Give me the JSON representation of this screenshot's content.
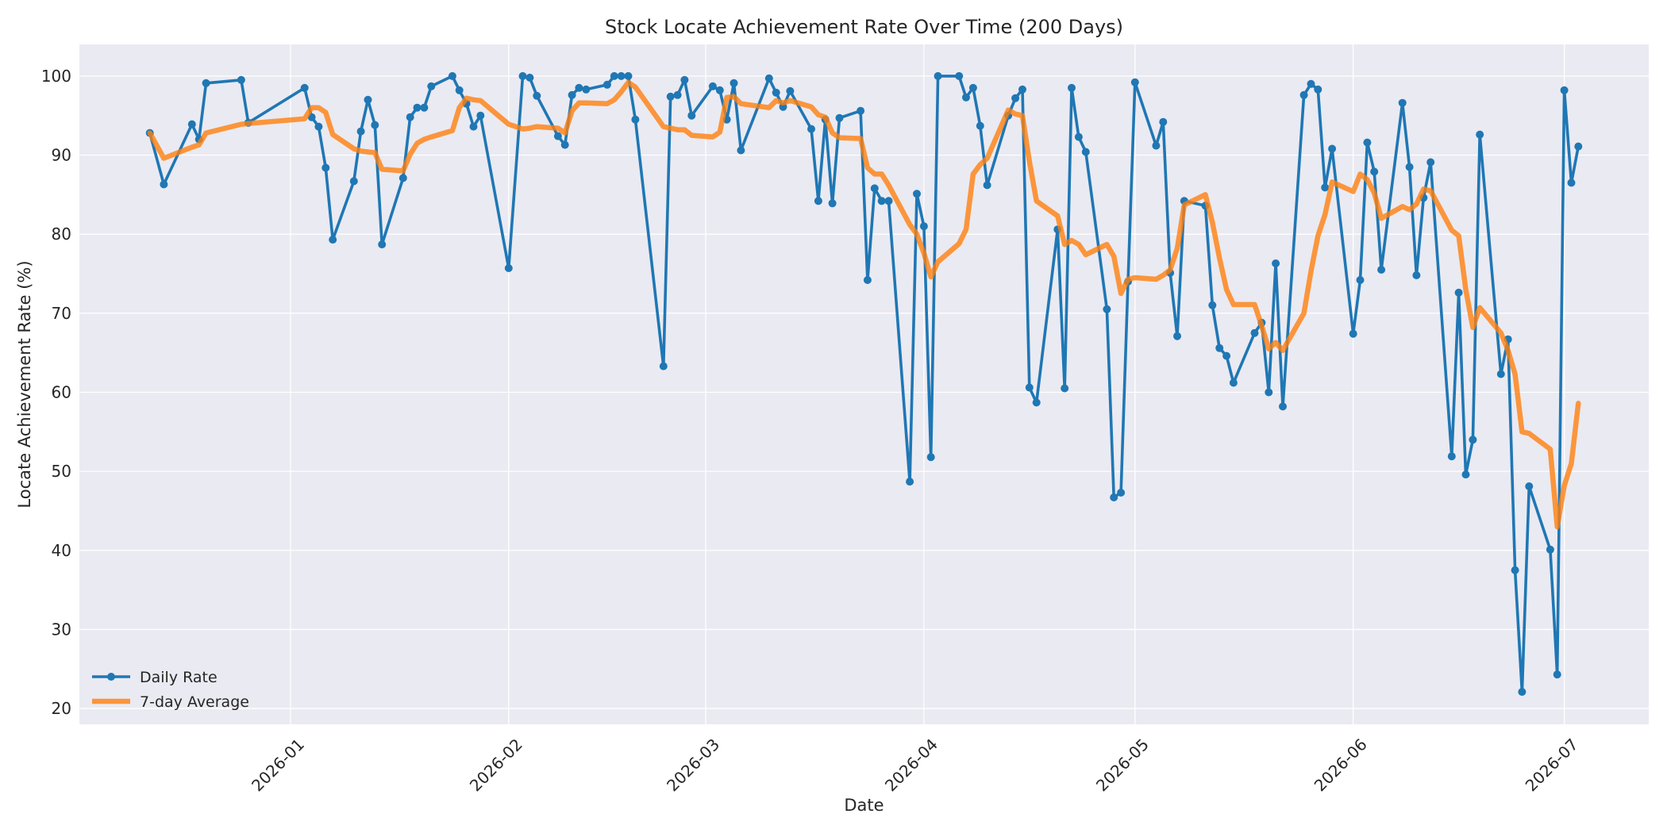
{
  "chart_data": {
    "type": "line",
    "title": "Stock Locate Achievement Rate Over Time (200 Days)",
    "xlabel": "Date",
    "ylabel": "Locate Achievement Rate (%)",
    "xlim": [
      "2025-12-02",
      "2026-07-13"
    ],
    "ylim": [
      18,
      104
    ],
    "yticks": [
      20,
      30,
      40,
      50,
      60,
      70,
      80,
      90,
      100
    ],
    "xticks": [
      "2026-01-01",
      "2026-02-01",
      "2026-03-01",
      "2026-04-01",
      "2026-05-01",
      "2026-06-01",
      "2026-07-01"
    ],
    "xtick_labels": [
      "2026-01",
      "2026-02",
      "2026-03",
      "2026-04",
      "2026-05",
      "2026-06",
      "2026-07"
    ],
    "grid": true,
    "legend_position": "lower-left",
    "colors": {
      "daily": "#1f77b4",
      "avg": "#ff7f0e",
      "background": "#eaeaf2",
      "grid": "#ffffff"
    },
    "series": [
      {
        "name": "Daily Rate",
        "marker": "circle",
        "points": [
          [
            "2025-12-12",
            92.8
          ],
          [
            "2025-12-14",
            86.3
          ],
          [
            "2025-12-18",
            93.9
          ],
          [
            "2025-12-19",
            92.0
          ],
          [
            "2025-12-20",
            99.1
          ],
          [
            "2025-12-25",
            99.5
          ],
          [
            "2025-12-26",
            94.1
          ],
          [
            "2026-01-03",
            98.5
          ],
          [
            "2026-01-04",
            94.8
          ],
          [
            "2026-01-05",
            93.6
          ],
          [
            "2026-01-06",
            88.4
          ],
          [
            "2026-01-07",
            79.3
          ],
          [
            "2026-01-10",
            86.7
          ],
          [
            "2026-01-11",
            93.0
          ],
          [
            "2026-01-12",
            97.0
          ],
          [
            "2026-01-13",
            93.8
          ],
          [
            "2026-01-14",
            78.7
          ],
          [
            "2026-01-17",
            87.1
          ],
          [
            "2026-01-18",
            94.8
          ],
          [
            "2026-01-19",
            96.0
          ],
          [
            "2026-01-20",
            96.0
          ],
          [
            "2026-01-21",
            98.7
          ],
          [
            "2026-01-24",
            100.0
          ],
          [
            "2026-01-25",
            98.2
          ],
          [
            "2026-01-26",
            96.5
          ],
          [
            "2026-01-27",
            93.6
          ],
          [
            "2026-01-28",
            95.0
          ],
          [
            "2026-02-01",
            75.7
          ],
          [
            "2026-02-03",
            100.0
          ],
          [
            "2026-02-04",
            99.8
          ],
          [
            "2026-02-05",
            97.5
          ],
          [
            "2026-02-08",
            92.4
          ],
          [
            "2026-02-09",
            91.3
          ],
          [
            "2026-02-10",
            97.6
          ],
          [
            "2026-02-11",
            98.5
          ],
          [
            "2026-02-12",
            98.3
          ],
          [
            "2026-02-15",
            98.9
          ],
          [
            "2026-02-16",
            100.0
          ],
          [
            "2026-02-17",
            100.0
          ],
          [
            "2026-02-18",
            100.0
          ],
          [
            "2026-02-19",
            94.5
          ],
          [
            "2026-02-23",
            63.3
          ],
          [
            "2026-02-24",
            97.4
          ],
          [
            "2026-02-25",
            97.6
          ],
          [
            "2026-02-26",
            99.5
          ],
          [
            "2026-02-27",
            95.0
          ],
          [
            "2026-03-02",
            98.7
          ],
          [
            "2026-03-03",
            98.2
          ],
          [
            "2026-03-04",
            94.5
          ],
          [
            "2026-03-05",
            99.1
          ],
          [
            "2026-03-06",
            90.6
          ],
          [
            "2026-03-10",
            99.7
          ],
          [
            "2026-03-11",
            97.9
          ],
          [
            "2026-03-12",
            96.1
          ],
          [
            "2026-03-13",
            98.1
          ],
          [
            "2026-03-16",
            93.3
          ],
          [
            "2026-03-17",
            84.2
          ],
          [
            "2026-03-18",
            94.5
          ],
          [
            "2026-03-19",
            83.9
          ],
          [
            "2026-03-20",
            94.7
          ],
          [
            "2026-03-23",
            95.6
          ],
          [
            "2026-03-24",
            74.2
          ],
          [
            "2026-03-25",
            85.8
          ],
          [
            "2026-03-26",
            84.2
          ],
          [
            "2026-03-27",
            84.2
          ],
          [
            "2026-03-30",
            48.7
          ],
          [
            "2026-03-31",
            85.1
          ],
          [
            "2026-04-01",
            81.0
          ],
          [
            "2026-04-02",
            51.8
          ],
          [
            "2026-04-03",
            100.0
          ],
          [
            "2026-04-06",
            100.0
          ],
          [
            "2026-04-07",
            97.3
          ],
          [
            "2026-04-08",
            98.5
          ],
          [
            "2026-04-09",
            93.7
          ],
          [
            "2026-04-10",
            86.2
          ],
          [
            "2026-04-13",
            95.0
          ],
          [
            "2026-04-14",
            97.2
          ],
          [
            "2026-04-15",
            98.3
          ],
          [
            "2026-04-16",
            60.6
          ],
          [
            "2026-04-17",
            58.7
          ],
          [
            "2026-04-20",
            80.6
          ],
          [
            "2026-04-21",
            60.5
          ],
          [
            "2026-04-22",
            98.5
          ],
          [
            "2026-04-23",
            92.3
          ],
          [
            "2026-04-24",
            90.4
          ],
          [
            "2026-04-27",
            70.5
          ],
          [
            "2026-04-28",
            46.7
          ],
          [
            "2026-04-29",
            47.3
          ],
          [
            "2026-04-30",
            74.0
          ],
          [
            "2026-05-01",
            99.2
          ],
          [
            "2026-05-04",
            91.2
          ],
          [
            "2026-05-05",
            94.2
          ],
          [
            "2026-05-06",
            75.1
          ],
          [
            "2026-05-07",
            67.1
          ],
          [
            "2026-05-08",
            84.2
          ],
          [
            "2026-05-11",
            83.6
          ],
          [
            "2026-05-12",
            71.0
          ],
          [
            "2026-05-13",
            65.6
          ],
          [
            "2026-05-14",
            64.6
          ],
          [
            "2026-05-15",
            61.2
          ],
          [
            "2026-05-18",
            67.5
          ],
          [
            "2026-05-19",
            68.8
          ],
          [
            "2026-05-20",
            60.0
          ],
          [
            "2026-05-21",
            76.3
          ],
          [
            "2026-05-22",
            58.2
          ],
          [
            "2026-05-25",
            97.6
          ],
          [
            "2026-05-26",
            99.0
          ],
          [
            "2026-05-27",
            98.3
          ],
          [
            "2026-05-28",
            85.9
          ],
          [
            "2026-05-29",
            90.8
          ],
          [
            "2026-06-01",
            67.4
          ],
          [
            "2026-06-02",
            74.2
          ],
          [
            "2026-06-03",
            91.6
          ],
          [
            "2026-06-04",
            87.9
          ],
          [
            "2026-06-05",
            75.5
          ],
          [
            "2026-06-08",
            96.6
          ],
          [
            "2026-06-09",
            88.5
          ],
          [
            "2026-06-10",
            74.8
          ],
          [
            "2026-06-11",
            84.6
          ],
          [
            "2026-06-12",
            89.1
          ],
          [
            "2026-06-15",
            51.9
          ],
          [
            "2026-06-16",
            72.6
          ],
          [
            "2026-06-17",
            49.6
          ],
          [
            "2026-06-18",
            54.0
          ],
          [
            "2026-06-19",
            92.6
          ],
          [
            "2026-06-22",
            62.3
          ],
          [
            "2026-06-23",
            66.7
          ],
          [
            "2026-06-24",
            37.5
          ],
          [
            "2026-06-25",
            22.1
          ],
          [
            "2026-06-26",
            48.1
          ],
          [
            "2026-06-29",
            40.1
          ],
          [
            "2026-06-30",
            24.3
          ],
          [
            "2026-07-01",
            98.2
          ],
          [
            "2026-07-02",
            86.5
          ],
          [
            "2026-07-03",
            91.1
          ]
        ]
      },
      {
        "name": "7-day Average",
        "points": [
          [
            "2025-12-12",
            92.8
          ],
          [
            "2025-12-14",
            89.6
          ],
          [
            "2025-12-18",
            91.0
          ],
          [
            "2025-12-19",
            91.3
          ],
          [
            "2025-12-20",
            92.8
          ],
          [
            "2025-12-25",
            93.9
          ],
          [
            "2025-12-26",
            94.0
          ],
          [
            "2026-01-03",
            94.6
          ],
          [
            "2026-01-04",
            96.0
          ],
          [
            "2026-01-05",
            96.0
          ],
          [
            "2026-01-06",
            95.4
          ],
          [
            "2026-01-07",
            92.6
          ],
          [
            "2026-01-10",
            90.8
          ],
          [
            "2026-01-11",
            90.5
          ],
          [
            "2026-01-12",
            90.4
          ],
          [
            "2026-01-13",
            90.3
          ],
          [
            "2026-01-14",
            88.2
          ],
          [
            "2026-01-17",
            88.0
          ],
          [
            "2026-01-18",
            90.1
          ],
          [
            "2026-01-19",
            91.5
          ],
          [
            "2026-01-20",
            92.0
          ],
          [
            "2026-01-21",
            92.3
          ],
          [
            "2026-01-24",
            93.1
          ],
          [
            "2026-01-25",
            96.0
          ],
          [
            "2026-01-26",
            97.2
          ],
          [
            "2026-01-27",
            97.0
          ],
          [
            "2026-01-28",
            96.9
          ],
          [
            "2026-02-01",
            93.9
          ],
          [
            "2026-02-03",
            93.3
          ],
          [
            "2026-02-04",
            93.4
          ],
          [
            "2026-02-05",
            93.6
          ],
          [
            "2026-02-08",
            93.4
          ],
          [
            "2026-02-09",
            92.8
          ],
          [
            "2026-02-10",
            95.6
          ],
          [
            "2026-02-11",
            96.6
          ],
          [
            "2026-02-12",
            96.6
          ],
          [
            "2026-02-15",
            96.5
          ],
          [
            "2026-02-16",
            97.0
          ],
          [
            "2026-02-17",
            98.0
          ],
          [
            "2026-02-18",
            99.2
          ],
          [
            "2026-02-19",
            98.6
          ],
          [
            "2026-02-23",
            93.6
          ],
          [
            "2026-02-24",
            93.4
          ],
          [
            "2026-02-25",
            93.2
          ],
          [
            "2026-02-26",
            93.2
          ],
          [
            "2026-02-27",
            92.5
          ],
          [
            "2026-03-02",
            92.3
          ],
          [
            "2026-03-03",
            92.9
          ],
          [
            "2026-03-04",
            97.3
          ],
          [
            "2026-03-05",
            97.4
          ],
          [
            "2026-03-06",
            96.5
          ],
          [
            "2026-03-10",
            96.0
          ],
          [
            "2026-03-11",
            96.9
          ],
          [
            "2026-03-12",
            96.6
          ],
          [
            "2026-03-13",
            96.9
          ],
          [
            "2026-03-16",
            96.1
          ],
          [
            "2026-03-17",
            95.1
          ],
          [
            "2026-03-18",
            94.8
          ],
          [
            "2026-03-19",
            92.8
          ],
          [
            "2026-03-20",
            92.2
          ],
          [
            "2026-03-23",
            92.1
          ],
          [
            "2026-03-24",
            88.4
          ],
          [
            "2026-03-25",
            87.6
          ],
          [
            "2026-03-26",
            87.6
          ],
          [
            "2026-03-27",
            86.2
          ],
          [
            "2026-03-30",
            81.2
          ],
          [
            "2026-03-31",
            80.0
          ],
          [
            "2026-04-01",
            77.6
          ],
          [
            "2026-04-02",
            74.6
          ],
          [
            "2026-04-03",
            76.5
          ],
          [
            "2026-04-06",
            78.8
          ],
          [
            "2026-04-07",
            80.6
          ],
          [
            "2026-04-08",
            87.6
          ],
          [
            "2026-04-09",
            88.8
          ],
          [
            "2026-04-10",
            89.6
          ],
          [
            "2026-04-13",
            95.7
          ],
          [
            "2026-04-14",
            95.2
          ],
          [
            "2026-04-15",
            95.0
          ],
          [
            "2026-04-16",
            89.2
          ],
          [
            "2026-04-17",
            84.2
          ],
          [
            "2026-04-20",
            82.3
          ],
          [
            "2026-04-21",
            78.7
          ],
          [
            "2026-04-22",
            79.2
          ],
          [
            "2026-04-23",
            78.7
          ],
          [
            "2026-04-24",
            77.4
          ],
          [
            "2026-04-27",
            78.7
          ],
          [
            "2026-04-28",
            77.2
          ],
          [
            "2026-04-29",
            72.5
          ],
          [
            "2026-04-30",
            74.3
          ],
          [
            "2026-05-01",
            74.5
          ],
          [
            "2026-05-04",
            74.3
          ],
          [
            "2026-05-05",
            74.8
          ],
          [
            "2026-05-06",
            75.5
          ],
          [
            "2026-05-07",
            78.2
          ],
          [
            "2026-05-08",
            83.7
          ],
          [
            "2026-05-11",
            85.0
          ],
          [
            "2026-05-12",
            81.5
          ],
          [
            "2026-05-13",
            77.0
          ],
          [
            "2026-05-14",
            73.0
          ],
          [
            "2026-05-15",
            71.1
          ],
          [
            "2026-05-18",
            71.1
          ],
          [
            "2026-05-19",
            68.4
          ],
          [
            "2026-05-20",
            65.5
          ],
          [
            "2026-05-21",
            66.3
          ],
          [
            "2026-05-22",
            65.3
          ],
          [
            "2026-05-25",
            70.0
          ],
          [
            "2026-05-26",
            75.3
          ],
          [
            "2026-05-27",
            79.8
          ],
          [
            "2026-05-28",
            82.5
          ],
          [
            "2026-05-29",
            86.6
          ],
          [
            "2026-06-01",
            85.4
          ],
          [
            "2026-06-02",
            87.6
          ],
          [
            "2026-06-03",
            86.9
          ],
          [
            "2026-06-04",
            85.2
          ],
          [
            "2026-06-05",
            82.0
          ],
          [
            "2026-06-08",
            83.5
          ],
          [
            "2026-06-09",
            83.1
          ],
          [
            "2026-06-10",
            83.8
          ],
          [
            "2026-06-11",
            85.7
          ],
          [
            "2026-06-12",
            85.5
          ],
          [
            "2026-06-15",
            80.5
          ],
          [
            "2026-06-16",
            79.8
          ],
          [
            "2026-06-17",
            73.0
          ],
          [
            "2026-06-18",
            68.2
          ],
          [
            "2026-06-19",
            70.7
          ],
          [
            "2026-06-22",
            67.5
          ],
          [
            "2026-06-23",
            65.3
          ],
          [
            "2026-06-24",
            62.3
          ],
          [
            "2026-06-25",
            55.0
          ],
          [
            "2026-06-26",
            54.8
          ],
          [
            "2026-06-29",
            52.8
          ],
          [
            "2026-06-30",
            43.0
          ],
          [
            "2026-07-01",
            48.2
          ],
          [
            "2026-07-02",
            51.0
          ],
          [
            "2026-07-03",
            58.6
          ]
        ]
      }
    ]
  }
}
